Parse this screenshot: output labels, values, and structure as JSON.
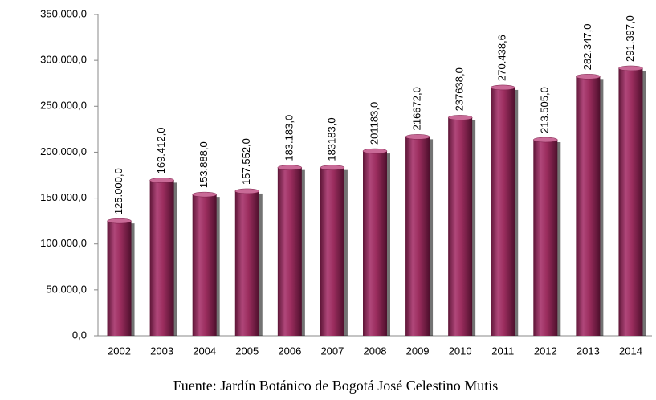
{
  "chart_data": {
    "type": "bar",
    "categories": [
      "2002",
      "2003",
      "2004",
      "2005",
      "2006",
      "2007",
      "2008",
      "2009",
      "2010",
      "2011",
      "2012",
      "2013",
      "2014"
    ],
    "values": [
      125000,
      169412,
      153888,
      157552,
      183183,
      183183,
      201183,
      216672,
      237638,
      270438.6,
      213505,
      282347,
      291397
    ],
    "value_labels": [
      "125.000,0",
      "169.412,0",
      "153.888,0",
      "157.552,0",
      "183.183,0",
      "183183,0",
      "201183,0",
      "216672,0",
      "237638,0",
      "270.438,6",
      "213.505,0",
      "282.347,0",
      "291.397,0"
    ],
    "color": "#9b2d5e",
    "ylim": [
      0,
      350000
    ],
    "yticks": [
      {
        "value": 0,
        "label": "0,0"
      },
      {
        "value": 50000,
        "label": "50.000,0"
      },
      {
        "value": 100000,
        "label": "100.000,0"
      },
      {
        "value": 150000,
        "label": "150.000,0"
      },
      {
        "value": 200000,
        "label": "200.000,0"
      },
      {
        "value": 250000,
        "label": "250.000,0"
      },
      {
        "value": 300000,
        "label": "300.000,0"
      },
      {
        "value": 350000,
        "label": "350.000,0"
      }
    ],
    "grid": false,
    "source": "Fuente: Jardín Botánico de Bogotá José Celestino Mutis"
  }
}
